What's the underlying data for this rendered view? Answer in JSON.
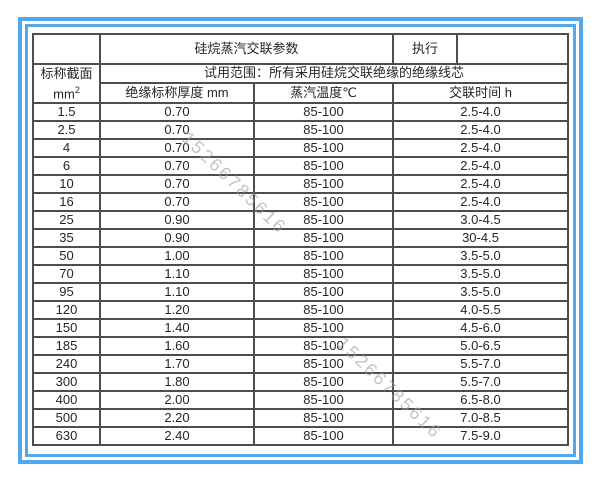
{
  "colors": {
    "frame_blue": "#52a8ea",
    "grid_line": "#4d4d4d",
    "text": "#262626",
    "watermark_gray": "#9e9e9e"
  },
  "watermark": {
    "text": "15266785616"
  },
  "table": {
    "title": "硅烷蒸汽交联参数",
    "execute_label": "执行",
    "scope": "试用范围：所有采用硅烷交联绝缘的绝缘线芯",
    "row_header": {
      "line1": "标称截面",
      "unit_base": "mm",
      "unit_sup": "2"
    },
    "columns": [
      "绝缘标称厚度 mm",
      "蒸汽温度℃",
      "交联时间 h"
    ],
    "rows": [
      {
        "size": "1.5",
        "thickness": "0.70",
        "temp": "85-100",
        "time": "2.5-4.0"
      },
      {
        "size": "2.5",
        "thickness": "0.70",
        "temp": "85-100",
        "time": "2.5-4.0"
      },
      {
        "size": "4",
        "thickness": "0.70",
        "temp": "85-100",
        "time": "2.5-4.0"
      },
      {
        "size": "6",
        "thickness": "0.70",
        "temp": "85-100",
        "time": "2.5-4.0"
      },
      {
        "size": "10",
        "thickness": "0.70",
        "temp": "85-100",
        "time": "2.5-4.0"
      },
      {
        "size": "16",
        "thickness": "0.70",
        "temp": "85-100",
        "time": "2.5-4.0"
      },
      {
        "size": "25",
        "thickness": "0.90",
        "temp": "85-100",
        "time": "3.0-4.5"
      },
      {
        "size": "35",
        "thickness": "0.90",
        "temp": "85-100",
        "time": "30-4.5"
      },
      {
        "size": "50",
        "thickness": "1.00",
        "temp": "85-100",
        "time": "3.5-5.0"
      },
      {
        "size": "70",
        "thickness": "1.10",
        "temp": "85-100",
        "time": "3.5-5.0"
      },
      {
        "size": "95",
        "thickness": "1.10",
        "temp": "85-100",
        "time": "3.5-5.0"
      },
      {
        "size": "120",
        "thickness": "1.20",
        "temp": "85-100",
        "time": "4.0-5.5"
      },
      {
        "size": "150",
        "thickness": "1.40",
        "temp": "85-100",
        "time": "4.5-6.0"
      },
      {
        "size": "185",
        "thickness": "1.60",
        "temp": "85-100",
        "time": "5.0-6.5"
      },
      {
        "size": "240",
        "thickness": "1.70",
        "temp": "85-100",
        "time": "5.5-7.0"
      },
      {
        "size": "300",
        "thickness": "1.80",
        "temp": "85-100",
        "time": "5.5-7.0"
      },
      {
        "size": "400",
        "thickness": "2.00",
        "temp": "85-100",
        "time": "6.5-8.0"
      },
      {
        "size": "500",
        "thickness": "2.20",
        "temp": "85-100",
        "time": "7.0-8.5"
      },
      {
        "size": "630",
        "thickness": "2.40",
        "temp": "85-100",
        "time": "7.5-9.0"
      }
    ]
  }
}
